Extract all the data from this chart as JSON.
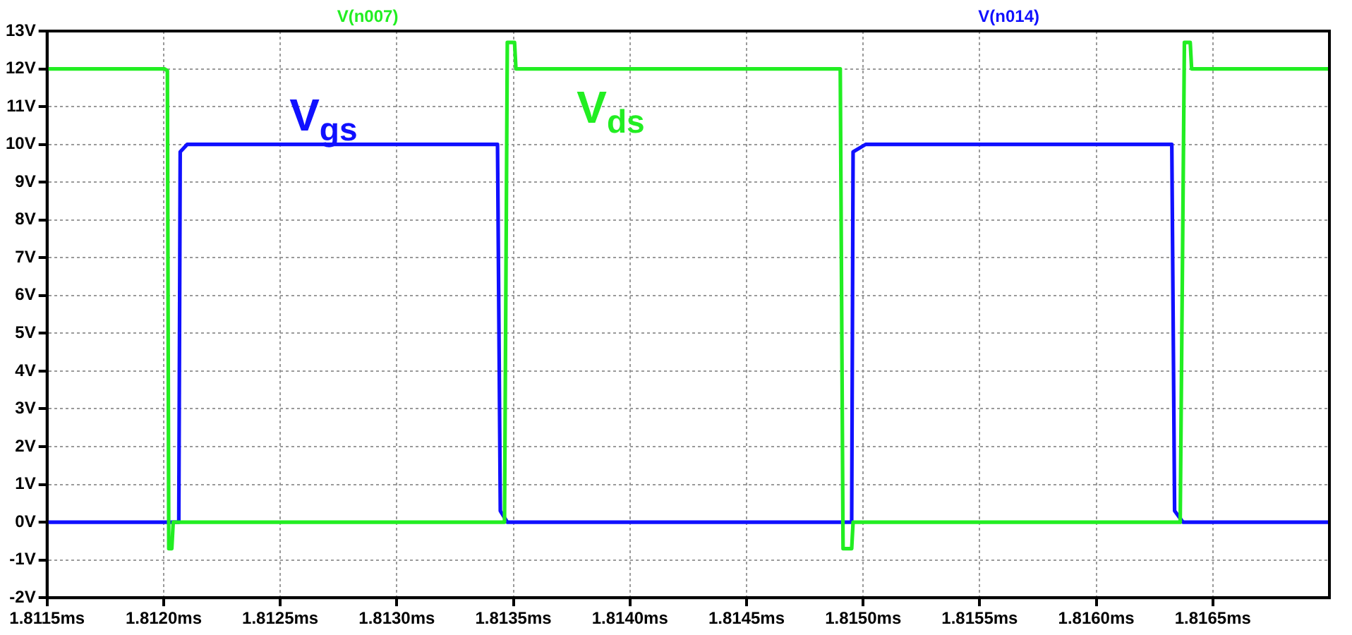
{
  "chart_data": {
    "type": "line",
    "xlim": [
      1.8115,
      1.817
    ],
    "ylim": [
      -2,
      13
    ],
    "xticks": [
      {
        "value": 1.8115,
        "label": "1.8115ms"
      },
      {
        "value": 1.812,
        "label": "1.8120ms"
      },
      {
        "value": 1.8125,
        "label": "1.8125ms"
      },
      {
        "value": 1.813,
        "label": "1.8130ms"
      },
      {
        "value": 1.8135,
        "label": "1.8135ms"
      },
      {
        "value": 1.814,
        "label": "1.8140ms"
      },
      {
        "value": 1.8145,
        "label": "1.8145ms"
      },
      {
        "value": 1.815,
        "label": "1.8150ms"
      },
      {
        "value": 1.8155,
        "label": "1.8155ms"
      },
      {
        "value": 1.816,
        "label": "1.8160ms"
      },
      {
        "value": 1.8165,
        "label": "1.8165ms"
      }
    ],
    "yticks": [
      {
        "value": -2,
        "label": "-2V"
      },
      {
        "value": -1,
        "label": "-1V"
      },
      {
        "value": 0,
        "label": "0V"
      },
      {
        "value": 1,
        "label": "1V"
      },
      {
        "value": 2,
        "label": "2V"
      },
      {
        "value": 3,
        "label": "3V"
      },
      {
        "value": 4,
        "label": "4V"
      },
      {
        "value": 5,
        "label": "5V"
      },
      {
        "value": 6,
        "label": "6V"
      },
      {
        "value": 7,
        "label": "7V"
      },
      {
        "value": 8,
        "label": "8V"
      },
      {
        "value": 9,
        "label": "9V"
      },
      {
        "value": 10,
        "label": "10V"
      },
      {
        "value": 11,
        "label": "11V"
      },
      {
        "value": 12,
        "label": "12V"
      },
      {
        "value": 13,
        "label": "13V"
      }
    ],
    "grid": true,
    "legend": "top",
    "marker": "none",
    "line_style": "solid",
    "series": [
      {
        "name": "V(n007)",
        "color": "#22ee22",
        "x": [
          1.8115,
          1.812004,
          1.812016,
          1.812022,
          1.812035,
          1.812041,
          1.813462,
          1.813474,
          1.813505,
          1.813511,
          1.814902,
          1.814914,
          1.814951,
          1.814957,
          1.81636,
          1.816378,
          1.816403,
          1.816409,
          1.817
        ],
        "values": [
          12,
          12,
          11.95,
          -0.7,
          -0.7,
          0,
          0,
          12.7,
          12.7,
          12,
          12,
          -0.7,
          -0.7,
          0,
          0,
          12.7,
          12.7,
          12,
          12
        ]
      },
      {
        "name": "V(n014)",
        "color": "#1010ff",
        "x": [
          1.8115,
          1.812065,
          1.812071,
          1.812101,
          1.813432,
          1.813444,
          1.813474,
          1.814951,
          1.814957,
          1.815011,
          1.816324,
          1.816336,
          1.816372,
          1.817
        ],
        "values": [
          0,
          0,
          9.8,
          10,
          10,
          0.3,
          0,
          0,
          9.8,
          10,
          10,
          0.3,
          0,
          0
        ]
      }
    ],
    "annotations": [
      "V$_{ds}$",
      "V$_{gs}$"
    ]
  }
}
